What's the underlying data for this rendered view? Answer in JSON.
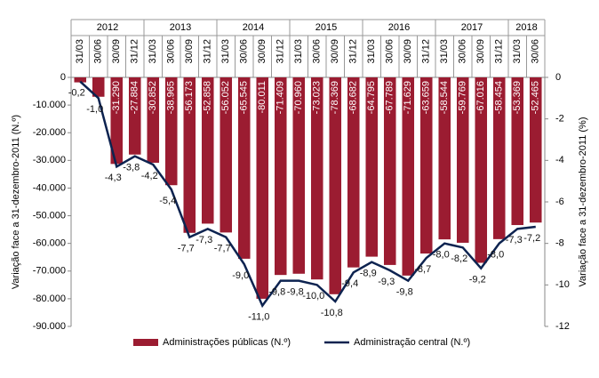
{
  "chart_data": {
    "type": "bar-line",
    "y_label": "Variação face a 31-dezembro-2011 (N.º)",
    "y2_label": "Variação face a 31-dezembro-2011 (%)",
    "year_labels": [
      "2012",
      "2013",
      "2014",
      "2015",
      "2016",
      "2017",
      "2018"
    ],
    "categories": [
      "31/03",
      "30/06",
      "30/09",
      "31/12",
      "31/03",
      "30/06",
      "30/09",
      "31/12",
      "31/03",
      "30/06",
      "30/09",
      "31/12",
      "31/03",
      "30/06",
      "30/09",
      "31/12",
      "31/03",
      "30/06",
      "30/09",
      "31/12",
      "31/03",
      "30/06",
      "30/09",
      "31/12",
      "31/03",
      "30/06"
    ],
    "series": [
      {
        "name": "Administrações públicas (N.º)",
        "color": "#9b1c31",
        "type": "bar",
        "values": [
          -1800,
          -7000,
          -31290,
          -27884,
          -30852,
          -38965,
          -56173,
          -52858,
          -56052,
          -65545,
          -80011,
          -71409,
          -70960,
          -73023,
          -78369,
          -68682,
          -64795,
          -67789,
          -71629,
          -63659,
          -58544,
          -59769,
          -67016,
          -58454,
          -53369,
          -52465
        ],
        "value_labels": [
          null,
          null,
          "-31.290",
          "-27.884",
          "-30.852",
          "-38.965",
          "-56.173",
          "-52.858",
          "-56.052",
          "-65.545",
          "-80.011",
          "-71.409",
          "-70.960",
          "-73.023",
          "-78.369",
          "-68.682",
          "-64.795",
          "-67.789",
          "-71.629",
          "-63.659",
          "-58.544",
          "-59.769",
          "-67.016",
          "-58.454",
          "-53.369",
          "-52.465"
        ]
      },
      {
        "name": "Administração central (N.º)",
        "color": "#0d2350",
        "type": "line",
        "axis": "y2",
        "values": [
          -0.2,
          -1.0,
          -4.3,
          -3.8,
          -4.2,
          -5.4,
          -7.7,
          -7.3,
          -7.7,
          -9.0,
          -11.0,
          -9.8,
          -9.8,
          -10.0,
          -10.8,
          -9.4,
          -8.9,
          -9.3,
          -9.8,
          -8.7,
          -8.0,
          -8.2,
          -9.2,
          -8.0,
          -7.3,
          -7.2
        ],
        "value_labels": [
          "-0,2",
          "-1,0",
          "-4,3",
          "-3,8",
          "-4,2",
          "-5,4",
          "-7,7",
          "-7,3",
          "-7,7",
          "-9,0",
          "-11,0",
          "-9,8",
          "-9,8",
          "-10,0",
          "-10,8",
          "-9,4",
          "-8,9",
          "-9,3",
          "-9,8",
          "-8,7",
          "-8,0",
          "-8,2",
          "-9,2",
          "-8,0",
          "-7,3",
          "-7,2"
        ]
      }
    ],
    "ylim": [
      -90000,
      0
    ],
    "yticks": [
      {
        "value": -90000,
        "label": "-90.000"
      },
      {
        "value": -80000,
        "label": "-80.000"
      },
      {
        "value": -70000,
        "label": "-70.000"
      },
      {
        "value": -60000,
        "label": "-60.000"
      },
      {
        "value": -50000,
        "label": "-50.000"
      },
      {
        "value": -40000,
        "label": "-40.000"
      },
      {
        "value": -30000,
        "label": "-30.000"
      },
      {
        "value": -20000,
        "label": "-20.000"
      },
      {
        "value": -10000,
        "label": "-10.000"
      },
      0
    ],
    "y2lim": [
      -12,
      0
    ],
    "y2ticks": [
      -12,
      -10,
      -8,
      -6,
      -4,
      -2,
      0
    ]
  }
}
